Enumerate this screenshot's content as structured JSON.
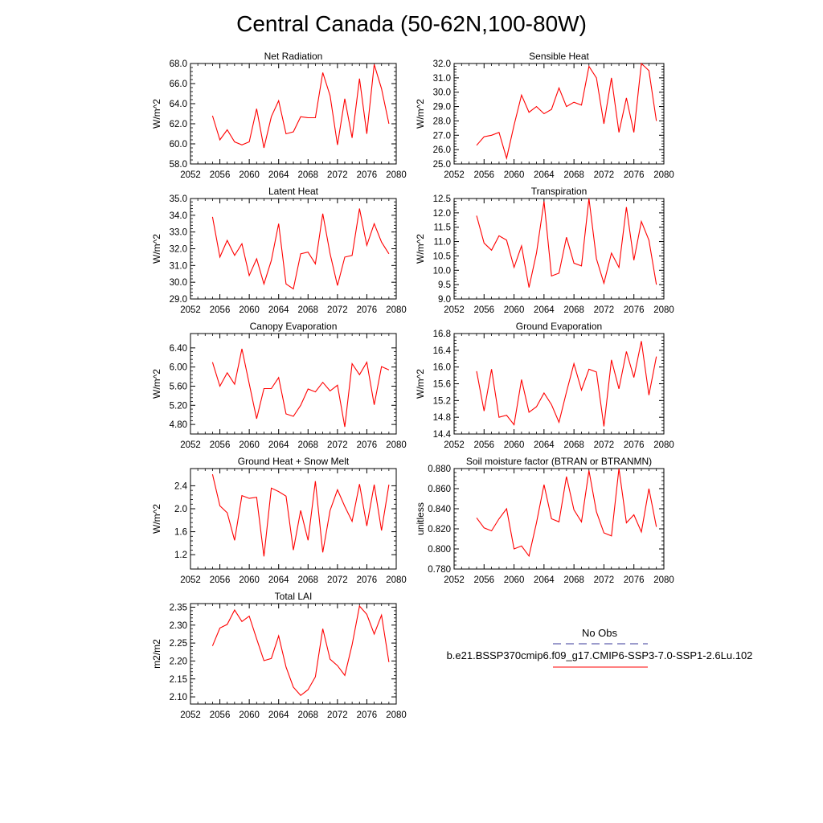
{
  "title": "Central Canada (50-62N,100-80W)",
  "legend": {
    "obs_label": "No Obs",
    "obs_color": "#3a3a9a",
    "model_label": "b.e21.BSSP370cmip6.f09_g17.CMIP6-SSP3-7.0-SSP1-2.6Lu.102",
    "model_color": "#ff0000"
  },
  "chart_data": [
    {
      "type": "line",
      "title": "Net Radiation",
      "ylabel": "W/m^2",
      "xlim": [
        2052,
        2080
      ],
      "ylim": [
        58.0,
        68.0
      ],
      "xticks": [
        2052,
        2056,
        2060,
        2064,
        2068,
        2072,
        2076,
        2080
      ],
      "yticks": [
        58.0,
        60.0,
        62.0,
        64.0,
        66.0,
        68.0
      ],
      "ytick_labels": [
        "58.0",
        "60.0",
        "62.0",
        "64.0",
        "66.0",
        "68.0"
      ],
      "x": [
        2055,
        2056,
        2057,
        2058,
        2059,
        2060,
        2061,
        2062,
        2063,
        2064,
        2065,
        2066,
        2067,
        2068,
        2069,
        2070,
        2071,
        2072,
        2073,
        2074,
        2075,
        2076,
        2077,
        2078,
        2079
      ],
      "series": [
        {
          "values": [
            62.8,
            60.4,
            61.4,
            60.2,
            59.9,
            60.2,
            63.5,
            59.6,
            62.7,
            64.3,
            61.0,
            61.2,
            62.7,
            62.6,
            62.6,
            67.1,
            64.8,
            59.9,
            64.5,
            60.6,
            66.5,
            61.0,
            67.9,
            65.5,
            62.0
          ]
        }
      ]
    },
    {
      "type": "line",
      "title": "Sensible Heat",
      "ylabel": "W/m^2",
      "xlim": [
        2052,
        2080
      ],
      "ylim": [
        25.0,
        32.0
      ],
      "xticks": [
        2052,
        2056,
        2060,
        2064,
        2068,
        2072,
        2076,
        2080
      ],
      "yticks": [
        25.0,
        26.0,
        27.0,
        28.0,
        29.0,
        30.0,
        31.0,
        32.0
      ],
      "ytick_labels": [
        "25.0",
        "26.0",
        "27.0",
        "28.0",
        "29.0",
        "30.0",
        "31.0",
        "32.0"
      ],
      "x": [
        2055,
        2056,
        2057,
        2058,
        2059,
        2060,
        2061,
        2062,
        2063,
        2064,
        2065,
        2066,
        2067,
        2068,
        2069,
        2070,
        2071,
        2072,
        2073,
        2074,
        2075,
        2076,
        2077,
        2078,
        2079
      ],
      "series": [
        {
          "values": [
            26.3,
            26.9,
            27.0,
            27.2,
            25.4,
            27.7,
            29.8,
            28.6,
            29.0,
            28.5,
            28.8,
            30.3,
            29.0,
            29.3,
            29.1,
            31.8,
            31.0,
            27.8,
            31.0,
            27.2,
            29.6,
            27.2,
            32.0,
            31.5,
            28.0
          ]
        }
      ]
    },
    {
      "type": "line",
      "title": "Latent Heat",
      "ylabel": "W/m^2",
      "xlim": [
        2052,
        2080
      ],
      "ylim": [
        29.0,
        35.0
      ],
      "xticks": [
        2052,
        2056,
        2060,
        2064,
        2068,
        2072,
        2076,
        2080
      ],
      "yticks": [
        29.0,
        30.0,
        31.0,
        32.0,
        33.0,
        34.0,
        35.0
      ],
      "ytick_labels": [
        "29.0",
        "30.0",
        "31.0",
        "32.0",
        "33.0",
        "34.0",
        "35.0"
      ],
      "x": [
        2055,
        2056,
        2057,
        2058,
        2059,
        2060,
        2061,
        2062,
        2063,
        2064,
        2065,
        2066,
        2067,
        2068,
        2069,
        2070,
        2071,
        2072,
        2073,
        2074,
        2075,
        2076,
        2077,
        2078,
        2079
      ],
      "series": [
        {
          "values": [
            33.9,
            31.5,
            32.5,
            31.6,
            32.3,
            30.4,
            31.4,
            29.9,
            31.3,
            33.5,
            29.9,
            29.6,
            31.7,
            31.8,
            31.1,
            34.1,
            31.7,
            29.8,
            31.5,
            31.6,
            34.4,
            32.2,
            33.5,
            32.4,
            31.7
          ]
        }
      ]
    },
    {
      "type": "line",
      "title": "Transpiration",
      "ylabel": "W/m^2",
      "xlim": [
        2052,
        2080
      ],
      "ylim": [
        9.0,
        12.5
      ],
      "xticks": [
        2052,
        2056,
        2060,
        2064,
        2068,
        2072,
        2076,
        2080
      ],
      "yticks": [
        9.0,
        9.5,
        10.0,
        10.5,
        11.0,
        11.5,
        12.0,
        12.5
      ],
      "ytick_labels": [
        "9.0",
        "9.5",
        "10.0",
        "10.5",
        "11.0",
        "11.5",
        "12.0",
        "12.5"
      ],
      "x": [
        2055,
        2056,
        2057,
        2058,
        2059,
        2060,
        2061,
        2062,
        2063,
        2064,
        2065,
        2066,
        2067,
        2068,
        2069,
        2070,
        2071,
        2072,
        2073,
        2074,
        2075,
        2076,
        2077,
        2078,
        2079
      ],
      "series": [
        {
          "values": [
            11.9,
            10.95,
            10.7,
            11.2,
            11.05,
            10.1,
            10.85,
            9.4,
            10.6,
            12.4,
            9.8,
            9.9,
            11.15,
            10.25,
            10.15,
            12.5,
            10.4,
            9.55,
            10.6,
            10.1,
            12.2,
            10.35,
            11.7,
            11.05,
            9.5
          ]
        }
      ]
    },
    {
      "type": "line",
      "title": "Canopy Evaporation",
      "ylabel": "W/m^2",
      "xlim": [
        2052,
        2080
      ],
      "ylim": [
        4.6,
        6.7
      ],
      "xticks": [
        2052,
        2056,
        2060,
        2064,
        2068,
        2072,
        2076,
        2080
      ],
      "yticks": [
        4.8,
        5.2,
        5.6,
        6.0,
        6.4
      ],
      "ytick_labels": [
        "4.80",
        "5.20",
        "5.60",
        "6.00",
        "6.40"
      ],
      "x": [
        2055,
        2056,
        2057,
        2058,
        2059,
        2060,
        2061,
        2062,
        2063,
        2064,
        2065,
        2066,
        2067,
        2068,
        2069,
        2070,
        2071,
        2072,
        2073,
        2074,
        2075,
        2076,
        2077,
        2078,
        2079
      ],
      "series": [
        {
          "values": [
            6.1,
            5.6,
            5.88,
            5.64,
            6.38,
            5.65,
            4.92,
            5.55,
            5.55,
            5.78,
            5.02,
            4.97,
            5.2,
            5.54,
            5.48,
            5.68,
            5.5,
            5.62,
            4.75,
            6.07,
            5.84,
            6.1,
            5.21,
            6.01,
            5.94
          ]
        }
      ]
    },
    {
      "type": "line",
      "title": "Ground Evaporation",
      "ylabel": "W/m^2",
      "xlim": [
        2052,
        2080
      ],
      "ylim": [
        14.4,
        16.8
      ],
      "xticks": [
        2052,
        2056,
        2060,
        2064,
        2068,
        2072,
        2076,
        2080
      ],
      "yticks": [
        14.4,
        14.8,
        15.2,
        15.6,
        16.0,
        16.4,
        16.8
      ],
      "ytick_labels": [
        "14.4",
        "14.8",
        "15.2",
        "15.6",
        "16.0",
        "16.4",
        "16.8"
      ],
      "x": [
        2055,
        2056,
        2057,
        2058,
        2059,
        2060,
        2061,
        2062,
        2063,
        2064,
        2065,
        2066,
        2067,
        2068,
        2069,
        2070,
        2071,
        2072,
        2073,
        2074,
        2075,
        2076,
        2077,
        2078,
        2079
      ],
      "series": [
        {
          "values": [
            15.9,
            14.95,
            15.95,
            14.8,
            14.85,
            14.62,
            15.7,
            14.92,
            15.05,
            15.38,
            15.1,
            14.68,
            15.4,
            16.08,
            15.45,
            15.95,
            15.88,
            14.58,
            16.17,
            15.48,
            16.37,
            15.75,
            16.62,
            15.33,
            16.25
          ]
        }
      ]
    },
    {
      "type": "line",
      "title": "Ground Heat + Snow Melt",
      "ylabel": "W/m^2",
      "xlim": [
        2052,
        2080
      ],
      "ylim": [
        0.95,
        2.7
      ],
      "xticks": [
        2052,
        2056,
        2060,
        2064,
        2068,
        2072,
        2076,
        2080
      ],
      "yticks": [
        1.2,
        1.6,
        2.0,
        2.4
      ],
      "ytick_labels": [
        "1.2",
        "1.6",
        "2.0",
        "2.4"
      ],
      "x": [
        2055,
        2056,
        2057,
        2058,
        2059,
        2060,
        2061,
        2062,
        2063,
        2064,
        2065,
        2066,
        2067,
        2068,
        2069,
        2070,
        2071,
        2072,
        2073,
        2074,
        2075,
        2076,
        2077,
        2078,
        2079
      ],
      "series": [
        {
          "values": [
            2.6,
            2.05,
            1.93,
            1.45,
            2.23,
            2.18,
            2.2,
            1.17,
            2.36,
            2.3,
            2.22,
            1.28,
            1.97,
            1.45,
            2.48,
            1.24,
            1.97,
            2.33,
            2.04,
            1.78,
            2.43,
            1.7,
            2.42,
            1.62,
            2.42
          ]
        }
      ]
    },
    {
      "type": "line",
      "title": "Soil moisture factor (BTRAN or BTRANMN)",
      "ylabel": "unitless",
      "xlim": [
        2052,
        2080
      ],
      "ylim": [
        0.78,
        0.88
      ],
      "xticks": [
        2052,
        2056,
        2060,
        2064,
        2068,
        2072,
        2076,
        2080
      ],
      "yticks": [
        0.78,
        0.8,
        0.82,
        0.84,
        0.86,
        0.88
      ],
      "ytick_labels": [
        "0.780",
        "0.800",
        "0.820",
        "0.840",
        "0.860",
        "0.880"
      ],
      "x": [
        2055,
        2056,
        2057,
        2058,
        2059,
        2060,
        2061,
        2062,
        2063,
        2064,
        2065,
        2066,
        2067,
        2068,
        2069,
        2070,
        2071,
        2072,
        2073,
        2074,
        2075,
        2076,
        2077,
        2078,
        2079
      ],
      "series": [
        {
          "values": [
            0.831,
            0.821,
            0.818,
            0.83,
            0.84,
            0.8,
            0.803,
            0.793,
            0.826,
            0.864,
            0.83,
            0.827,
            0.872,
            0.839,
            0.827,
            0.878,
            0.837,
            0.816,
            0.813,
            0.88,
            0.826,
            0.834,
            0.817,
            0.86,
            0.822
          ]
        }
      ]
    },
    {
      "type": "line",
      "title": "Total LAI",
      "ylabel": "m2/m2",
      "xlim": [
        2052,
        2080
      ],
      "ylim": [
        2.08,
        2.36
      ],
      "xticks": [
        2052,
        2056,
        2060,
        2064,
        2068,
        2072,
        2076,
        2080
      ],
      "yticks": [
        2.1,
        2.15,
        2.2,
        2.25,
        2.3,
        2.35
      ],
      "ytick_labels": [
        "2.10",
        "2.15",
        "2.20",
        "2.25",
        "2.30",
        "2.35"
      ],
      "x": [
        2055,
        2056,
        2057,
        2058,
        2059,
        2060,
        2061,
        2062,
        2063,
        2064,
        2065,
        2066,
        2067,
        2068,
        2069,
        2070,
        2071,
        2072,
        2073,
        2074,
        2075,
        2076,
        2077,
        2078,
        2079
      ],
      "series": [
        {
          "values": [
            2.242,
            2.292,
            2.302,
            2.342,
            2.31,
            2.325,
            2.262,
            2.201,
            2.207,
            2.27,
            2.183,
            2.127,
            2.104,
            2.12,
            2.156,
            2.29,
            2.205,
            2.187,
            2.16,
            2.245,
            2.353,
            2.33,
            2.275,
            2.328,
            2.197
          ]
        }
      ]
    }
  ]
}
